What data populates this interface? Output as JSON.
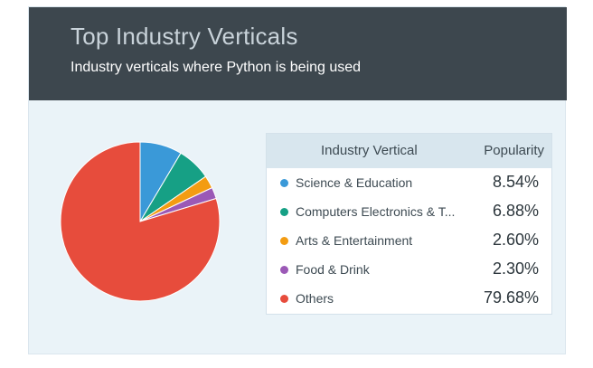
{
  "header": {
    "title": "Top Industry Verticals",
    "subtitle": "Industry verticals where Python is being used"
  },
  "table": {
    "col_name": "Industry Vertical",
    "col_value": "Popularity",
    "rows": [
      {
        "label": "Science & Education",
        "value": "8.54%",
        "color": "#3a99d8"
      },
      {
        "label": "Computers Electronics & T...",
        "value": "6.88%",
        "color": "#16a085"
      },
      {
        "label": "Arts & Entertainment",
        "value": "2.60%",
        "color": "#f39c12"
      },
      {
        "label": "Food & Drink",
        "value": "2.30%",
        "color": "#9b59b6"
      },
      {
        "label": "Others",
        "value": "79.68%",
        "color": "#e74c3c"
      }
    ]
  },
  "chart_data": {
    "type": "pie",
    "title": "Top Industry Verticals",
    "subtitle": "Industry verticals where Python is being used",
    "categories": [
      "Science & Education",
      "Computers Electronics & T...",
      "Arts & Entertainment",
      "Food & Drink",
      "Others"
    ],
    "values": [
      8.54,
      6.88,
      2.6,
      2.3,
      79.68
    ],
    "colors": [
      "#3a99d8",
      "#16a085",
      "#f39c12",
      "#9b59b6",
      "#e74c3c"
    ],
    "start": "top",
    "direction": "clockwise"
  }
}
